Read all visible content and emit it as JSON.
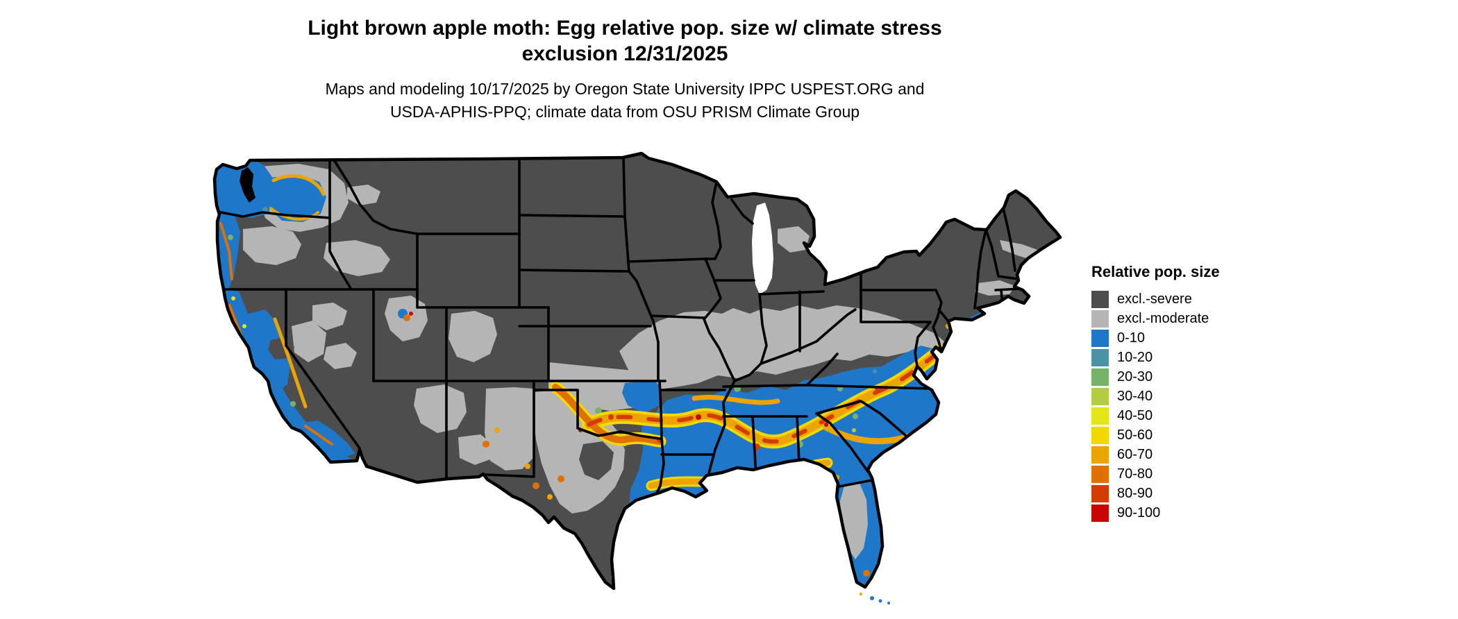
{
  "title": {
    "line1": "Light brown apple moth: Egg relative pop. size w/ climate stress",
    "line2": "exclusion 12/31/2025"
  },
  "subtitle": {
    "line1": "Maps and modeling 10/17/2025 by Oregon State University IPPC USPEST.ORG and",
    "line2": "USDA-APHIS-PPQ; climate data from OSU PRISM Climate Group"
  },
  "legend": {
    "title": "Relative pop. size",
    "items": [
      {
        "label": "excl.-severe",
        "class": "excl-severe",
        "color": "#4d4d4d"
      },
      {
        "label": "excl.-moderate",
        "class": "excl-moderate",
        "color": "#b5b5b5"
      },
      {
        "label": "0-10",
        "class": "v0-10",
        "color": "#1e77c8"
      },
      {
        "label": "10-20",
        "class": "v10-20",
        "color": "#4b93a2"
      },
      {
        "label": "20-30",
        "class": "v20-30",
        "color": "#76b267"
      },
      {
        "label": "30-40",
        "class": "v30-40",
        "color": "#b4cc42"
      },
      {
        "label": "40-50",
        "class": "v40-50",
        "color": "#e3e516"
      },
      {
        "label": "50-60",
        "class": "v50-60",
        "color": "#f3d800"
      },
      {
        "label": "60-70",
        "class": "v60-70",
        "color": "#eba400"
      },
      {
        "label": "70-80",
        "class": "v70-80",
        "color": "#df7100"
      },
      {
        "label": "80-90",
        "class": "v80-90",
        "color": "#d33b00"
      },
      {
        "label": "90-100",
        "class": "v90-100",
        "color": "#c90404"
      }
    ]
  },
  "map": {
    "type": "raster-choropleth",
    "area": "Continental United States with state boundaries",
    "water_color": "#ffffff",
    "border_color": "#000000",
    "regions": [
      {
        "name": "northern-states-and-interior-west",
        "class": "excl-severe"
      },
      {
        "name": "midwest-transition-band-MO-IL-IN-OH-PA",
        "class": "excl-moderate"
      },
      {
        "name": "central-and-west-texas-plains",
        "class": "excl-moderate"
      },
      {
        "name": "southeast-gulf-and-atlantic-states",
        "class": "v0-10"
      },
      {
        "name": "pacific-coast-and-central-valley",
        "class": "v0-10"
      },
      {
        "name": "eastern-washington-columbia-basin",
        "class": "v0-10"
      },
      {
        "name": "mid-south-band-arkansas-tennessee-to-carolinas",
        "class": "v60-80-hotspots"
      },
      {
        "name": "gulf-coast-band-louisiana-to-florida-panhandle",
        "class": "v60-80-hotspots"
      },
      {
        "name": "red-river-and-east-texas-band",
        "class": "v60-80-hotspots"
      },
      {
        "name": "central-florida-patch",
        "class": "excl-moderate"
      },
      {
        "name": "west-coast-mountain-streaks",
        "class": "v50-80-hotspots"
      }
    ]
  }
}
